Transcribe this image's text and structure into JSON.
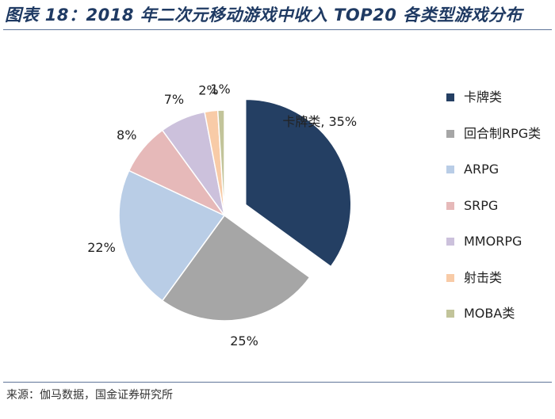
{
  "title": "图表 18：2018 年二次元移动游戏中收入 TOP20 各类型游戏分布",
  "source": "来源：伽马数据，国金证券研究所",
  "colors": {
    "title": "#1f3a63",
    "rule": "#5f7598"
  },
  "chart_data": {
    "type": "pie",
    "title": "2018 年二次元移动游戏中收入 TOP20 各类型游戏分布",
    "unit": "%",
    "legend_position": "right",
    "slices": [
      {
        "name": "卡牌类",
        "value": 35,
        "label": "卡牌类, 35%",
        "color": "#243f63",
        "exploded": true
      },
      {
        "name": "回合制RPG类",
        "value": 25,
        "label": "25%",
        "color": "#a6a6a6",
        "exploded": false
      },
      {
        "name": "ARPG",
        "value": 22,
        "label": "22%",
        "color": "#b9cde6",
        "exploded": false
      },
      {
        "name": "SRPG",
        "value": 8,
        "label": "8%",
        "color": "#e6b9b9",
        "exploded": false
      },
      {
        "name": "MMORPG",
        "value": 7,
        "label": "7%",
        "color": "#ccc1dc",
        "exploded": false
      },
      {
        "name": "射击类",
        "value": 2,
        "label": "2%",
        "color": "#f8cba7",
        "exploded": false
      },
      {
        "name": "MOBA类",
        "value": 1,
        "label": "1%",
        "color": "#c2c49a",
        "exploded": false
      }
    ]
  }
}
